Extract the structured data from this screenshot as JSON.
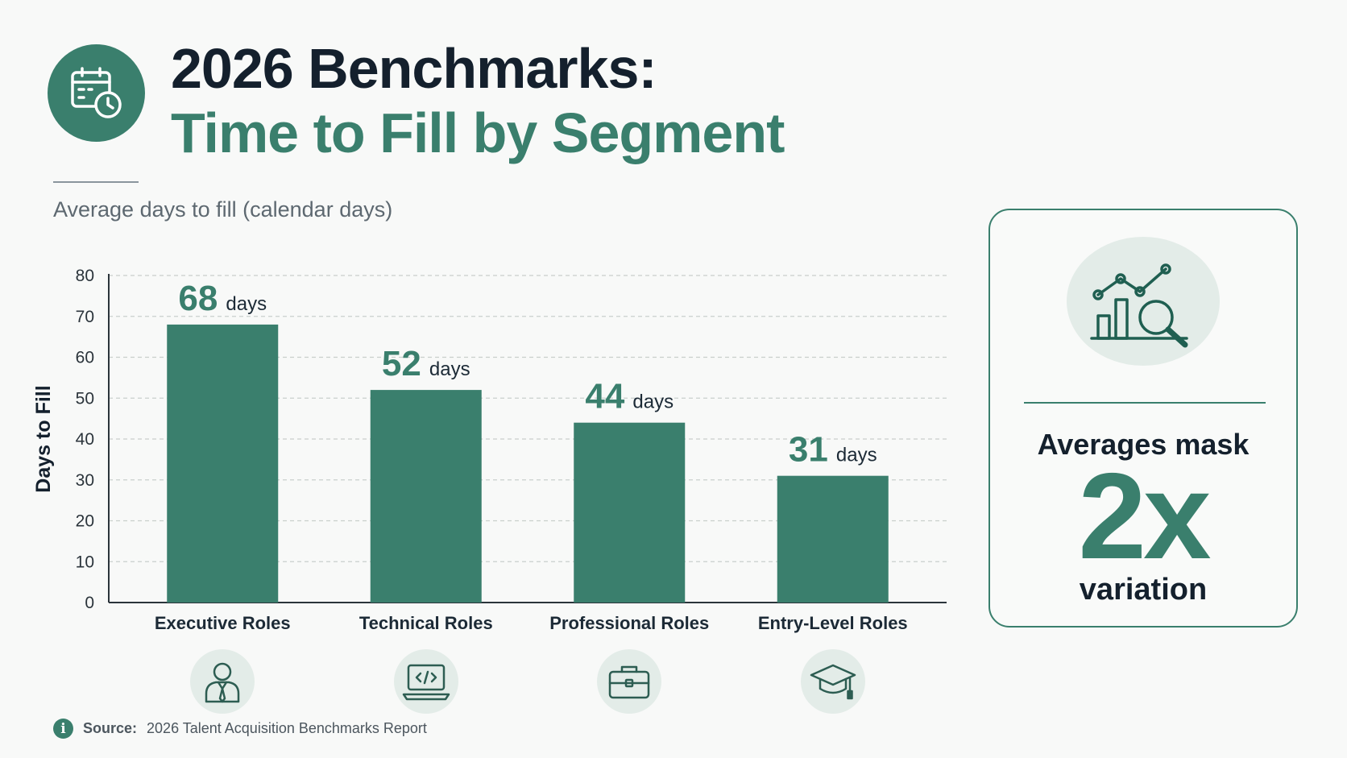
{
  "header": {
    "title_line1": "2026 Benchmarks:",
    "title_line2": "Time to Fill by Segment",
    "subtitle": "Average days to fill (calendar days)",
    "badge_icon": "calendar-clock-icon"
  },
  "chart_data": {
    "type": "bar",
    "title": "2026 Benchmarks: Time to Fill by Segment",
    "subtitle": "Average days to fill (calendar days)",
    "categories": [
      "Executive Roles",
      "Technical Roles",
      "Professional Roles",
      "Entry-Level Roles"
    ],
    "values": [
      68,
      52,
      44,
      31
    ],
    "value_unit": "days",
    "xlabel": "",
    "ylabel": "Days to Fill",
    "ylim": [
      0,
      80
    ],
    "yticks": [
      0,
      10,
      20,
      30,
      40,
      50,
      60,
      70,
      80
    ],
    "grid": true,
    "bar_color": "#3a7f6d",
    "category_icons": [
      "person-tie-icon",
      "laptop-code-icon",
      "briefcase-icon",
      "graduation-cap-icon"
    ]
  },
  "insight": {
    "line1": "Averages mask",
    "big": "2x",
    "line3": "variation",
    "icon": "chart-magnifier-icon"
  },
  "source": {
    "label": "Source:",
    "text": "2026 Talent Acquisition Benchmarks Report",
    "icon": "info-icon"
  },
  "colors": {
    "accent": "#3a7f6d",
    "title_dark": "#14202d",
    "icon_bg": "#e3ece8"
  }
}
